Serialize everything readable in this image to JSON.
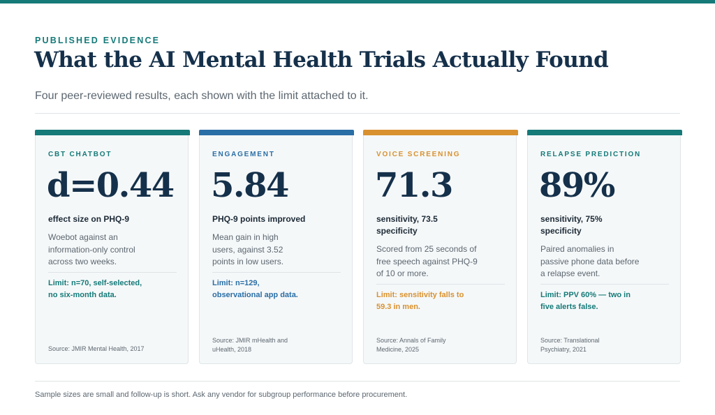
{
  "header": {
    "eyebrow": "PUBLISHED EVIDENCE",
    "title": "What the AI Mental Health Trials Actually Found",
    "subtitle": "Four peer-reviewed results, each shown with the limit attached to it."
  },
  "colors": {
    "teal": "#157a78",
    "blue": "#2a6ea6",
    "orange": "#d9912f",
    "navy": "#15304a"
  },
  "cards": [
    {
      "category": "CBT CHATBOT",
      "value": "d=0.44",
      "metric": "effect size on PHQ-9",
      "description": "Woebot against an information-only control across two weeks.",
      "limit": "Limit: n=70, self-selected, no six-month data.",
      "source": "Source: JMIR Mental Health, 2017",
      "accent": "#157a78",
      "limit_color": "#157a78"
    },
    {
      "category": "ENGAGEMENT",
      "value": "5.84",
      "metric": "PHQ-9 points improved",
      "description": "Mean gain in high users, against 3.52 points in low users.",
      "limit": "Limit: n=129, observational app data.",
      "source": "Source: JMIR mHealth and uHealth, 2018",
      "accent": "#2a6ea6",
      "limit_color": "#2a6ea6"
    },
    {
      "category": "VOICE SCREENING",
      "value": "71.3",
      "metric": "sensitivity, 73.5 specificity",
      "description": "Scored from 25 seconds of free speech against PHQ-9 of 10 or more.",
      "limit": "Limit: sensitivity falls to 59.3 in men.",
      "source": "Source: Annals of Family Medicine, 2025",
      "accent": "#d9912f",
      "limit_color": "#d9912f"
    },
    {
      "category": "RELAPSE PREDICTION",
      "value": "89%",
      "metric": "sensitivity, 75% specificity",
      "description": "Paired anomalies in passive phone data before a relapse event.",
      "limit": "Limit: PPV 60% — two in five alerts false.",
      "source": "Source: Translational Psychiatry, 2021",
      "accent": "#157a78",
      "limit_color": "#157a78"
    }
  ],
  "footer": {
    "note": "Sample sizes are small and follow-up is short. Ask any vendor for subgroup performance before procurement."
  }
}
